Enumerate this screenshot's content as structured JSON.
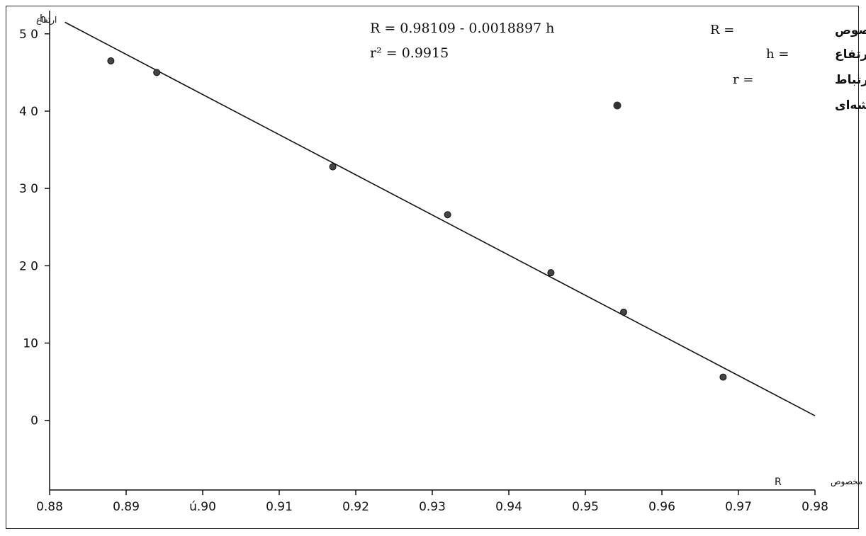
{
  "chart_data": {
    "type": "scatter",
    "title": "",
    "x_axis": {
      "title_ar": "جرم مخصوص",
      "title_symbol": "R",
      "range": [
        0.88,
        0.98
      ],
      "ticks": [
        0.88,
        0.89,
        0.9,
        0.91,
        0.92,
        0.93,
        0.94,
        0.95,
        0.96,
        0.97,
        0.98
      ],
      "tick_labels": [
        "0.88",
        "0.89",
        "ú.90",
        "0.91",
        "0.92",
        "0.93",
        "0.94",
        "0.95",
        "0.96",
        "0.97",
        "0.98"
      ]
    },
    "y_axis": {
      "title_ar": "ارتفاع",
      "title_symbol": "h",
      "range": [
        -9,
        53
      ],
      "ticks": [
        0,
        10,
        20,
        30,
        40,
        50
      ],
      "tick_labels": [
        "0",
        "10",
        "2 0",
        "3 0",
        "4 0",
        "5 0"
      ]
    },
    "series": [
      {
        "name": "محل قرار گرفتن گلوله‌های شیشه‌ای",
        "marker": "filled-circle",
        "x": [
          0.888,
          0.894,
          0.917,
          0.932,
          0.9455,
          0.955,
          0.968
        ],
        "y": [
          46.5,
          45.0,
          32.8,
          26.6,
          19.1,
          14.0,
          5.6
        ]
      }
    ],
    "fit_line": {
      "x": [
        0.882,
        0.98
      ],
      "y": [
        51.5,
        0.6
      ]
    },
    "annotations": {
      "equation": "R = 0.98109 - 0.0018897 h",
      "r_squared": "r² = 0.9915"
    },
    "legend": {
      "placement": "top-right",
      "entries": [
        {
          "text": "جرم مخصوص",
          "symbol": "R ="
        },
        {
          "text": "ارتفاع",
          "symbol": "h ="
        },
        {
          "text": "ضریب ارتباط",
          "symbol": "r ="
        },
        {
          "text": "محل قرار گرفتن گلوله‌های شیشه‌ای",
          "symbol": "●"
        }
      ]
    },
    "grid": false
  }
}
